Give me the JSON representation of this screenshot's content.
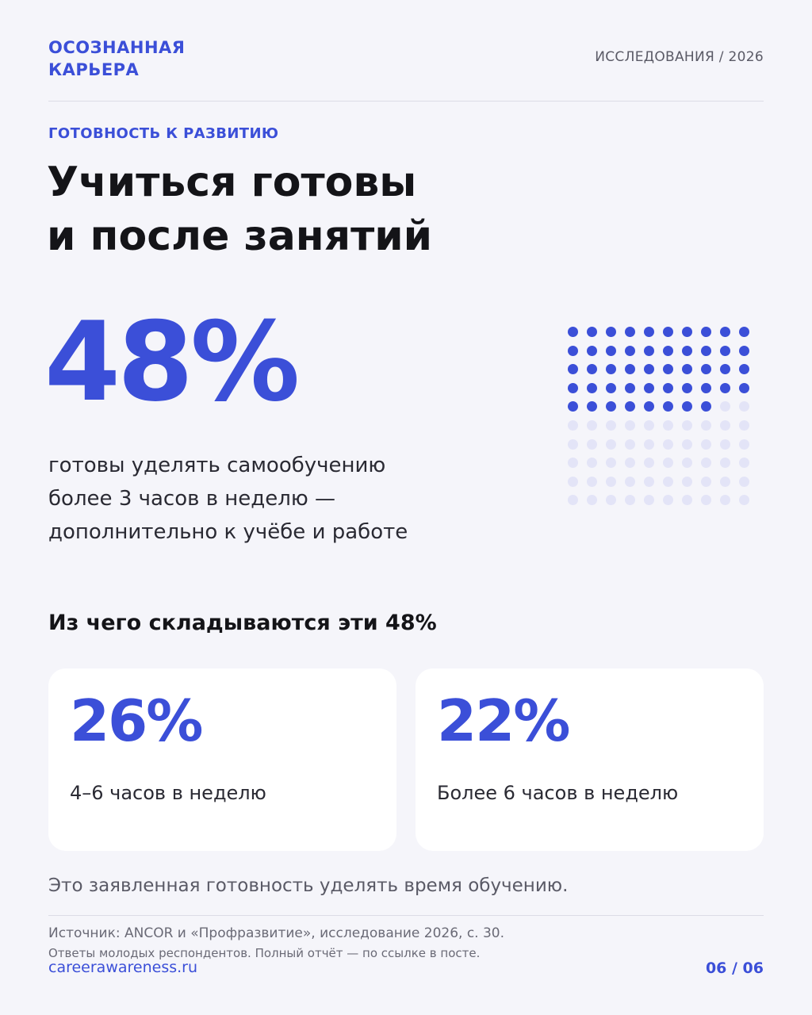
{
  "header": {
    "brand_line1": "ОСОЗНАННАЯ",
    "brand_line2": "КАРЬЕРА",
    "section": "ИССЛЕДОВАНИЯ / 2026"
  },
  "eyebrow": "ГОТОВНОСТЬ К РАЗВИТИЮ",
  "headline": {
    "line1": "Учиться готовы",
    "line2": "и после занятий"
  },
  "main_stat": {
    "value": "48%",
    "percent": 48,
    "desc_line1": "готовы уделять самообучению",
    "desc_line2": "более 3 часов в неделю —",
    "desc_line3": "дополнительно к учёбе и работе"
  },
  "dot_grid": {
    "total": 100,
    "filled": 48,
    "filled_color": "#3b4fd8",
    "empty_color": "#e3e4f7"
  },
  "breakdown": {
    "title": "Из чего складываются эти 48%",
    "cards": [
      {
        "value": "26%",
        "label": "4–6 часов в неделю"
      },
      {
        "value": "22%",
        "label": "Более 6 часов в неделю"
      }
    ]
  },
  "note": "Это заявленная готовность уделять время обучению.",
  "footer": {
    "source": "Источник: ANCOR и «Профразвитие», исследование 2026, с. 30.",
    "source_note": "Ответы молодых респондентов. Полный отчёт — по ссылке в посте.",
    "site": "careerawareness.ru",
    "page": "06 / 06"
  },
  "colors": {
    "accent": "#3b4fd8",
    "background": "#f5f5fa",
    "card": "#ffffff"
  }
}
